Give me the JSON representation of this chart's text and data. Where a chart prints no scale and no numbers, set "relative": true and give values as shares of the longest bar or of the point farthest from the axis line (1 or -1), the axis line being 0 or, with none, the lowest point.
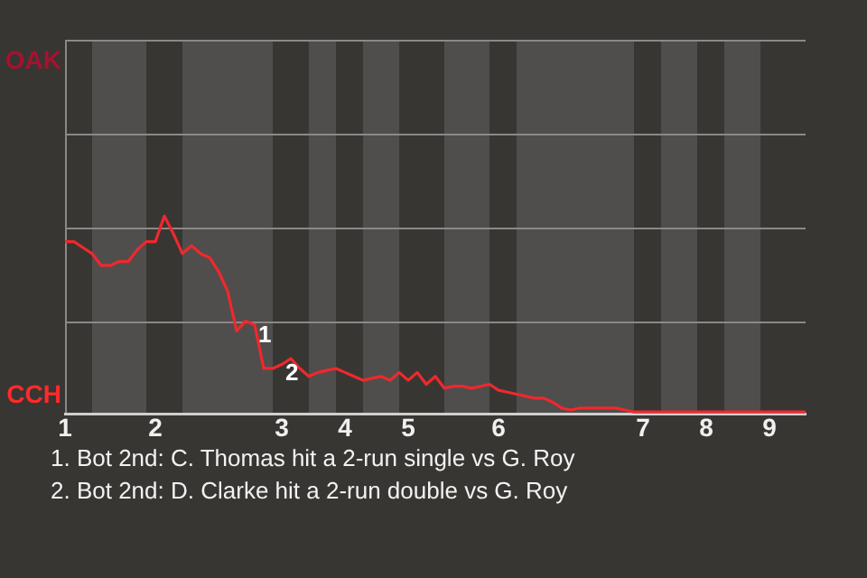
{
  "chart_data": {
    "type": "line",
    "relative": true,
    "categories": [
      "1",
      null,
      null,
      null,
      null,
      null,
      null,
      null,
      null,
      null,
      "2",
      null,
      null,
      null,
      null,
      null,
      null,
      null,
      null,
      null,
      null,
      null,
      null,
      null,
      "3",
      null,
      null,
      null,
      null,
      null,
      null,
      "4",
      null,
      null,
      null,
      null,
      null,
      null,
      "5",
      null,
      null,
      null,
      null,
      null,
      null,
      null,
      null,
      null,
      "6",
      null,
      null,
      null,
      null,
      null,
      null,
      null,
      null,
      null,
      null,
      null,
      null,
      null,
      null,
      null,
      "7",
      null,
      null,
      null,
      null,
      null,
      null,
      "8",
      null,
      null,
      null,
      null,
      null,
      null,
      "9",
      null,
      null,
      null,
      null
    ],
    "series": [
      {
        "color": "#f0282d",
        "values": [
          0.87,
          0.87,
          0.84,
          0.81,
          0.75,
          0.75,
          0.77,
          0.77,
          0.83,
          0.87,
          0.87,
          1,
          0.91,
          0.81,
          0.85,
          0.81,
          0.79,
          0.72,
          0.62,
          0.42,
          0.47,
          0.45,
          0.23,
          0.23,
          0.25,
          0.28,
          0.23,
          0.19,
          0.21,
          0.22,
          0.23,
          0.21,
          0.19,
          0.17,
          0.18,
          0.19,
          0.17,
          0.21,
          0.17,
          0.21,
          0.15,
          0.19,
          0.13,
          0.14,
          0.14,
          0.13,
          0.14,
          0.15,
          0.12,
          0.11,
          0.1,
          0.09,
          0.08,
          0.08,
          0.06,
          0.03,
          0.02,
          0.03,
          0.03,
          0.03,
          0.03,
          0.03,
          0.02,
          0.01,
          0.01,
          0.01,
          0.01,
          0.01,
          0.01,
          0.01,
          0.01,
          0.01,
          0.01,
          0.01,
          0.01,
          0.01,
          0.01,
          0.01,
          0.01,
          0.01,
          0.01,
          0.01,
          0.01
        ]
      }
    ],
    "ref_lines": [
      {
        "axis": "y",
        "value": 0.47,
        "color": "#8a8988"
      },
      {
        "axis": "y",
        "value": 0.94,
        "color": "#8a8988"
      }
    ],
    "legend": false,
    "marker": "none",
    "line_style": "solid",
    "annotations": [
      "OAK",
      "CCH",
      {
        "text": "1",
        "y": 0.42
      },
      {
        "text": "2",
        "y": 0.23
      },
      "1. Bot 2nd: C. Thomas hit a 2-run single vs G. Roy",
      "2. Bot 2nd: D. Clarke hit a 2-run double vs G. Roy"
    ]
  }
}
